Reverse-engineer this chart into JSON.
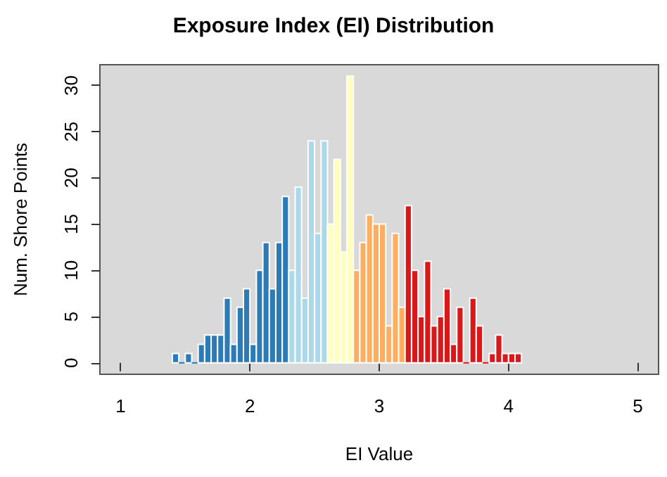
{
  "chart_data": {
    "type": "histogram",
    "title": "Exposure Index (EI) Distribution",
    "xlabel": "EI Value",
    "ylabel": "Num. Shore Points",
    "bins": [
      1.4,
      1.45,
      1.5,
      1.55,
      1.6,
      1.65,
      1.7,
      1.75,
      1.8,
      1.85,
      1.9,
      1.95,
      2.0,
      2.05,
      2.1,
      2.15,
      2.2,
      2.25,
      2.3,
      2.35,
      2.4,
      2.45,
      2.5,
      2.55,
      2.6,
      2.65,
      2.7,
      2.75,
      2.8,
      2.85,
      2.9,
      2.95,
      3.0,
      3.05,
      3.1,
      3.15,
      3.2,
      3.25,
      3.3,
      3.35,
      3.4,
      3.45,
      3.5,
      3.55,
      3.6,
      3.65,
      3.7,
      3.75,
      3.8,
      3.85,
      3.9,
      3.95,
      4.0,
      4.05,
      4.1
    ],
    "values": [
      1,
      0,
      1,
      0,
      2,
      3,
      3,
      3,
      7,
      2,
      6,
      8,
      2,
      10,
      13,
      8,
      13,
      18,
      10,
      19,
      7,
      24,
      14,
      24,
      15,
      22,
      12,
      31,
      10,
      13,
      16,
      15,
      15,
      4,
      14,
      6,
      17,
      10,
      5,
      11,
      4,
      5,
      8,
      2,
      6,
      0,
      7,
      4,
      0,
      1,
      3,
      1,
      1,
      1
    ],
    "colors": [
      "#2c7bb6",
      "#2c7bb6",
      "#2c7bb6",
      "#2c7bb6",
      "#2c7bb6",
      "#2c7bb6",
      "#2c7bb6",
      "#2c7bb6",
      "#2c7bb6",
      "#2c7bb6",
      "#2c7bb6",
      "#2c7bb6",
      "#2c7bb6",
      "#2c7bb6",
      "#2c7bb6",
      "#2c7bb6",
      "#2c7bb6",
      "#2c7bb6",
      "#abd9e9",
      "#abd9e9",
      "#abd9e9",
      "#abd9e9",
      "#abd9e9",
      "#abd9e9",
      "#ffffbf",
      "#ffffbf",
      "#ffffbf",
      "#ffffbf",
      "#fdae61",
      "#fdae61",
      "#fdae61",
      "#fdae61",
      "#fdae61",
      "#fdae61",
      "#fdae61",
      "#fdae61",
      "#d7191c",
      "#d7191c",
      "#d7191c",
      "#d7191c",
      "#d7191c",
      "#d7191c",
      "#d7191c",
      "#d7191c",
      "#d7191c",
      "#d7191c",
      "#d7191c",
      "#d7191c",
      "#d7191c",
      "#d7191c",
      "#d7191c",
      "#d7191c",
      "#d7191c",
      "#d7191c"
    ],
    "xlim": [
      0.84,
      5.16
    ],
    "ylim": [
      -1.24,
      32.24
    ],
    "xticks": [
      1,
      2,
      3,
      4,
      5
    ],
    "yticks": [
      0,
      5,
      10,
      15,
      20,
      25,
      30
    ],
    "grid": false
  }
}
